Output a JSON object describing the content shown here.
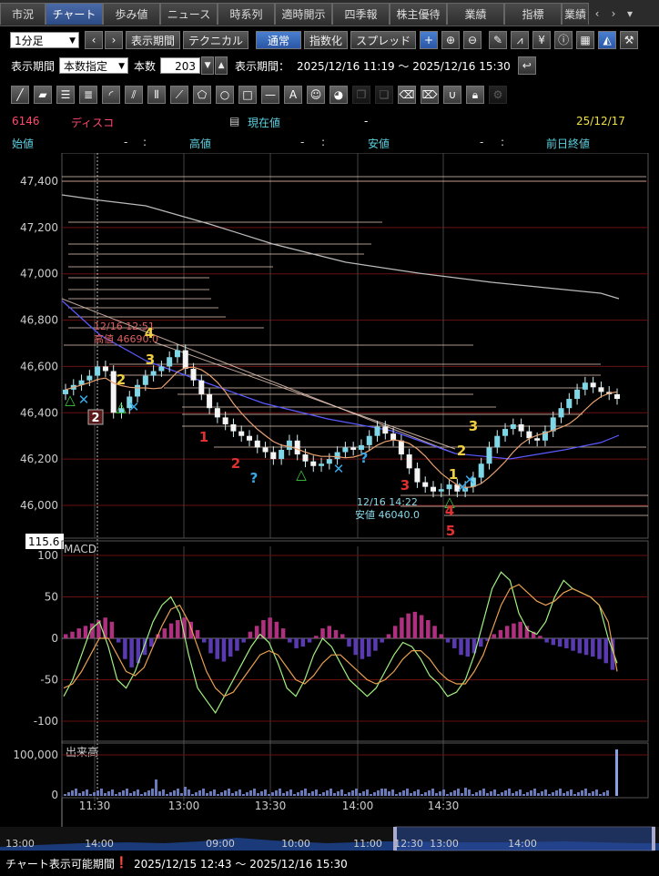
{
  "tabs": [
    "市況",
    "チャート",
    "歩み値",
    "ニュース",
    "時系列",
    "適時開示",
    "四季報",
    "株主優待",
    "業績",
    "指標",
    "業績"
  ],
  "active_tab_index": 1,
  "toolbar1": {
    "interval": "1分足",
    "period_button": "表示期間",
    "technical_button": "テクニカル",
    "normal_button": "通常",
    "index_button": "指数化",
    "spread_button": "スプレッド"
  },
  "toolbar2": {
    "period_label": "表示期間",
    "period_mode": "本数指定",
    "count_label": "本数",
    "count_value": "203",
    "range_label": "表示期間：",
    "range_value": "2025/12/16 11:19 ～ 2025/12/16 15:30"
  },
  "stock": {
    "code": "6146",
    "name": "ディスコ",
    "current_label": "現在値",
    "current_value": "-",
    "date": "25/12/17",
    "open_label": "始値",
    "open_value": "-",
    "high_label": "高値",
    "high_value": "-",
    "low_label": "安値",
    "low_value": "-",
    "prev_close_label": "前日終値",
    "colon": ":"
  },
  "chart_data": [
    {
      "type": "candlestick",
      "y_ticks": [
        "47,400",
        "47,200",
        "47,000",
        "46,800",
        "46,600",
        "46,400",
        "46,200",
        "46,000"
      ],
      "ylim": [
        45900,
        47480
      ],
      "x_ticks": [
        "11:30",
        "13:00",
        "13:30",
        "14:00",
        "14:30"
      ],
      "annotations": {
        "high": {
          "time": "12/16 12:51",
          "label": "高値 46690.0",
          "value": 46690
        },
        "low": {
          "time": "12/16 14:22",
          "label": "安値 46040.0",
          "value": 46040
        }
      },
      "price_label": "115.6",
      "close_series": [
        46500,
        46520,
        46540,
        46560,
        46600,
        46580,
        46400,
        46420,
        46470,
        46520,
        46560,
        46580,
        46600,
        46640,
        46670,
        46590,
        46540,
        46480,
        46420,
        46380,
        46350,
        46320,
        46300,
        46280,
        46250,
        46230,
        46200,
        46240,
        46280,
        46220,
        46190,
        46170,
        46180,
        46200,
        46230,
        46250,
        46240,
        46260,
        46300,
        46340,
        46310,
        46280,
        46220,
        46160,
        46100,
        46080,
        46060,
        46070,
        46090,
        46060,
        46080,
        46120,
        46180,
        46250,
        46300,
        46330,
        46350,
        46320,
        46290,
        46280,
        46320,
        46380,
        46420,
        46460,
        46500,
        46530,
        46510,
        46490,
        46480,
        46460
      ]
    },
    {
      "type": "line",
      "title": "MACD",
      "y_ticks": [
        "100",
        "50",
        "0",
        "-50",
        "-100"
      ],
      "ylim": [
        -110,
        110
      ]
    },
    {
      "type": "bar",
      "title": "出来高",
      "y_ticks": [
        "100,000",
        "0"
      ]
    }
  ],
  "navigator": {
    "labels": [
      "13:00",
      "14:00",
      "09:00",
      "10:00",
      "11:00",
      "12:30",
      "13:00",
      "14:00"
    ]
  },
  "footer": {
    "label": "チャート表示可能期間",
    "range": "2025/12/15 12:43 ～ 2025/12/16 15:30"
  },
  "colors": {
    "bull": "#7fd6e6",
    "bear": "#f5f5f5",
    "ma1": "#e8a070",
    "ma2": "#5a5aff",
    "ma3": "#bbbbbb",
    "macd_pos": "#b03080",
    "macd_neg": "#5a3ab0"
  }
}
